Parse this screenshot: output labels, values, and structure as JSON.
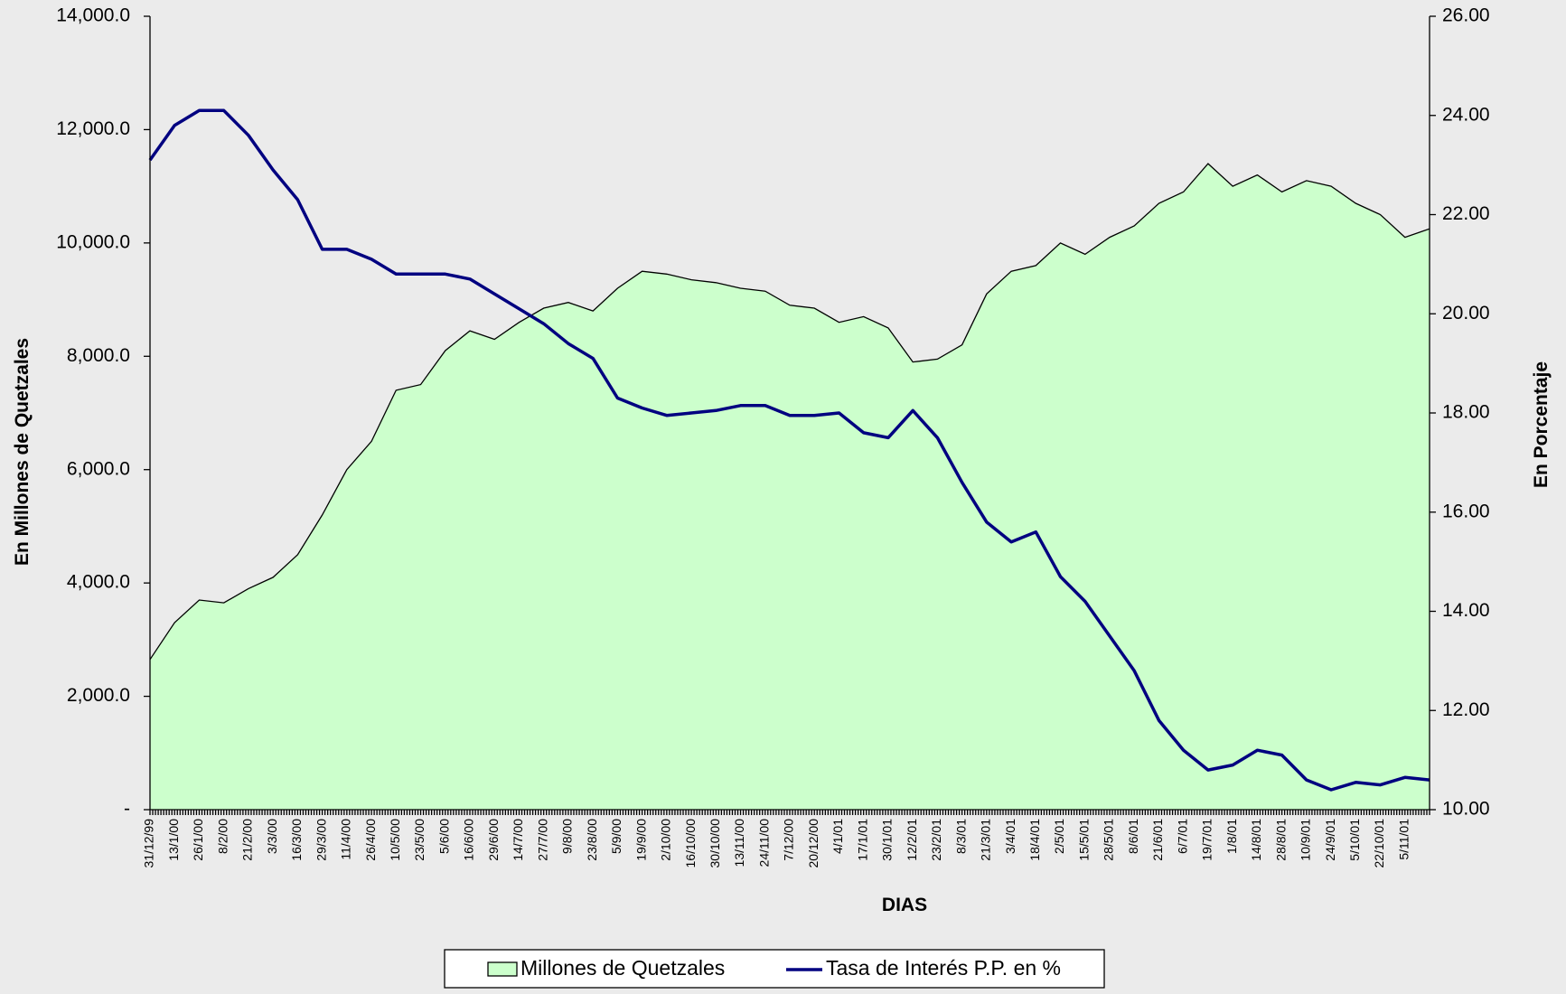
{
  "chart_data": {
    "type": "area-line",
    "x_label": "DIAS",
    "y_label": "En Millones de Quetzales",
    "y2_label": "En Porcentaje",
    "categories": [
      "31/12/99",
      "13/1/00",
      "26/1/00",
      "8/2/00",
      "21/2/00",
      "3/3/00",
      "16/3/00",
      "29/3/00",
      "11/4/00",
      "26/4/00",
      "10/5/00",
      "23/5/00",
      "5/6/00",
      "16/6/00",
      "29/6/00",
      "14/7/00",
      "27/7/00",
      "9/8/00",
      "23/8/00",
      "5/9/00",
      "19/9/00",
      "2/10/00",
      "16/10/00",
      "30/10/00",
      "13/11/00",
      "24/11/00",
      "7/12/00",
      "20/12/00",
      "4/1/01",
      "17/1/01",
      "30/1/01",
      "12/2/01",
      "23/2/01",
      "8/3/01",
      "21/3/01",
      "3/4/01",
      "18/4/01",
      "2/5/01",
      "15/5/01",
      "28/5/01",
      "8/6/01",
      "21/6/01",
      "6/7/01",
      "19/7/01",
      "1/8/01",
      "14/8/01",
      "28/8/01",
      "10/9/01",
      "24/9/01",
      "5/10/01",
      "22/10/01",
      "5/11/01",
      null
    ],
    "series": [
      {
        "name": "Millones de Quetzales",
        "type": "area",
        "color": "#ccffcc",
        "axis": "y",
        "values": [
          2650,
          3300,
          3700,
          3650,
          3900,
          4100,
          4500,
          5200,
          6000,
          6500,
          7400,
          7500,
          8100,
          8450,
          8300,
          8600,
          8850,
          8950,
          8800,
          9200,
          9500,
          9450,
          9350,
          9300,
          9200,
          9150,
          8900,
          8850,
          8600,
          8700,
          8500,
          7900,
          7950,
          8200,
          9100,
          9500,
          9600,
          10000,
          9800,
          10100,
          10300,
          10700,
          10900,
          11400,
          11000,
          11200,
          10900,
          11100,
          11000,
          10700,
          10500,
          10100,
          10250
        ]
      },
      {
        "name": "Tasa de Interés P.P. en %",
        "type": "line",
        "color": "#000080",
        "axis": "y2",
        "values": [
          23.1,
          23.8,
          24.1,
          24.1,
          23.6,
          22.9,
          22.3,
          21.3,
          21.3,
          21.1,
          20.8,
          20.8,
          20.8,
          20.7,
          20.4,
          20.1,
          19.8,
          19.4,
          19.1,
          18.3,
          18.1,
          17.95,
          18.0,
          18.05,
          18.15,
          18.15,
          17.95,
          17.95,
          18.0,
          17.6,
          17.5,
          18.05,
          17.5,
          16.6,
          15.8,
          15.4,
          15.6,
          14.7,
          14.2,
          13.5,
          12.8,
          11.8,
          11.2,
          10.8,
          10.9,
          11.2,
          11.1,
          10.6,
          10.4,
          10.55,
          10.5,
          10.65,
          10.6
        ]
      }
    ],
    "ylim": [
      0,
      14000
    ],
    "yticks": [
      {
        "value": 0,
        "label": "-"
      },
      {
        "value": 2000,
        "label": "2,000.0"
      },
      {
        "value": 4000,
        "label": "4,000.0"
      },
      {
        "value": 6000,
        "label": "6,000.0"
      },
      {
        "value": 8000,
        "label": "8,000.0"
      },
      {
        "value": 10000,
        "label": "10,000.0"
      },
      {
        "value": 12000,
        "label": "12,000.0"
      },
      {
        "value": 14000,
        "label": "14,000.0"
      }
    ],
    "y2lim": [
      10,
      26
    ],
    "y2ticks": [
      {
        "value": 10,
        "label": "10.00"
      },
      {
        "value": 12,
        "label": "12.00"
      },
      {
        "value": 14,
        "label": "14.00"
      },
      {
        "value": 16,
        "label": "16.00"
      },
      {
        "value": 18,
        "label": "18.00"
      },
      {
        "value": 20,
        "label": "20.00"
      },
      {
        "value": 22,
        "label": "22.00"
      },
      {
        "value": 24,
        "label": "24.00"
      },
      {
        "value": 26,
        "label": "26.00"
      }
    ],
    "legend": "bottom"
  }
}
